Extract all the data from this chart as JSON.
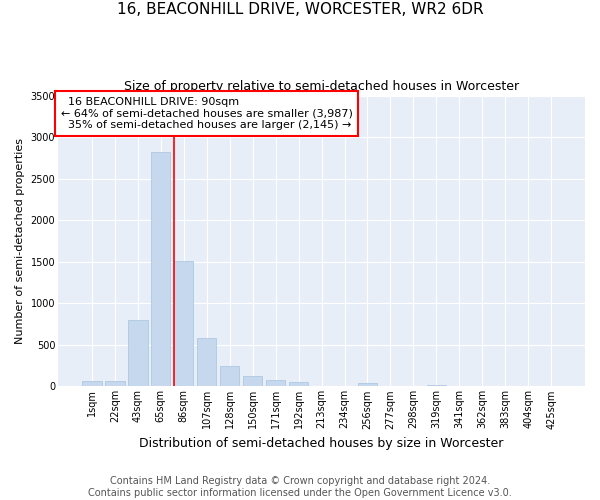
{
  "title_line1": "16, BEACONHILL DRIVE, WORCESTER, WR2 6DR",
  "title_line2": "Size of property relative to semi-detached houses in Worcester",
  "xlabel": "Distribution of semi-detached houses by size in Worcester",
  "ylabel": "Number of semi-detached properties",
  "bar_color": "#c5d8ed",
  "bar_edge_color": "#a8c4de",
  "annotation_line_color": "red",
  "annotation_box_color": "red",
  "bg_color": "#e8eef8",
  "categories": [
    "1sqm",
    "22sqm",
    "43sqm",
    "65sqm",
    "86sqm",
    "107sqm",
    "128sqm",
    "150sqm",
    "171sqm",
    "192sqm",
    "213sqm",
    "234sqm",
    "256sqm",
    "277sqm",
    "298sqm",
    "319sqm",
    "341sqm",
    "362sqm",
    "383sqm",
    "404sqm",
    "425sqm"
  ],
  "values": [
    60,
    70,
    800,
    2820,
    1510,
    580,
    240,
    120,
    80,
    50,
    0,
    0,
    40,
    0,
    0,
    20,
    0,
    0,
    0,
    0,
    0
  ],
  "property_label": "16 BEACONHILL DRIVE: 90sqm",
  "pct_smaller": 64,
  "pct_smaller_count": "3,987",
  "pct_larger": 35,
  "pct_larger_count": "2,145",
  "red_line_index": 4,
  "ylim": [
    0,
    3500
  ],
  "yticks": [
    0,
    500,
    1000,
    1500,
    2000,
    2500,
    3000,
    3500
  ],
  "footnote": "Contains HM Land Registry data © Crown copyright and database right 2024.\nContains public sector information licensed under the Open Government Licence v3.0.",
  "title_fontsize": 11,
  "subtitle_fontsize": 9,
  "xlabel_fontsize": 9,
  "ylabel_fontsize": 8,
  "tick_fontsize": 7,
  "annot_fontsize": 8,
  "footnote_fontsize": 7
}
